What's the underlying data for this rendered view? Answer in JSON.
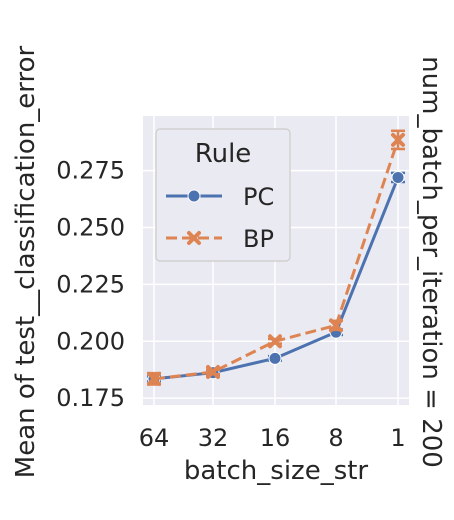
{
  "chart_data": {
    "type": "line",
    "categories": [
      "64",
      "32",
      "16",
      "8",
      "1"
    ],
    "xlabel": "batch_size_str",
    "ylabel": "Mean of test__classification_error",
    "facet_label": "num_batch_per_iteration = 200",
    "ylim": [
      0.172,
      0.299
    ],
    "yticks": [
      0.175,
      0.2,
      0.225,
      0.25,
      0.275
    ],
    "ytick_labels": [
      "0.175",
      "0.200",
      "0.225",
      "0.250",
      "0.275"
    ],
    "grid": true,
    "legend": {
      "title": "Rule",
      "placement": "upper-left"
    },
    "series": [
      {
        "name": "PC",
        "color": "#4c72b0",
        "marker": "circle",
        "linestyle": "solid",
        "values": [
          0.1835,
          0.1862,
          0.1925,
          0.204,
          0.272
        ],
        "err_low": [
          0.1825,
          0.1852,
          0.1915,
          0.2028,
          0.27
        ],
        "err_high": [
          0.1845,
          0.1872,
          0.1935,
          0.2052,
          0.274
        ]
      },
      {
        "name": "BP",
        "color": "#dd8452",
        "marker": "x",
        "linestyle": "dashed",
        "values": [
          0.1835,
          0.1865,
          0.2,
          0.207,
          0.2885
        ],
        "err_low": [
          0.181,
          0.1855,
          0.199,
          0.205,
          0.2845
        ],
        "err_high": [
          0.186,
          0.1875,
          0.201,
          0.209,
          0.2925
        ]
      }
    ]
  }
}
